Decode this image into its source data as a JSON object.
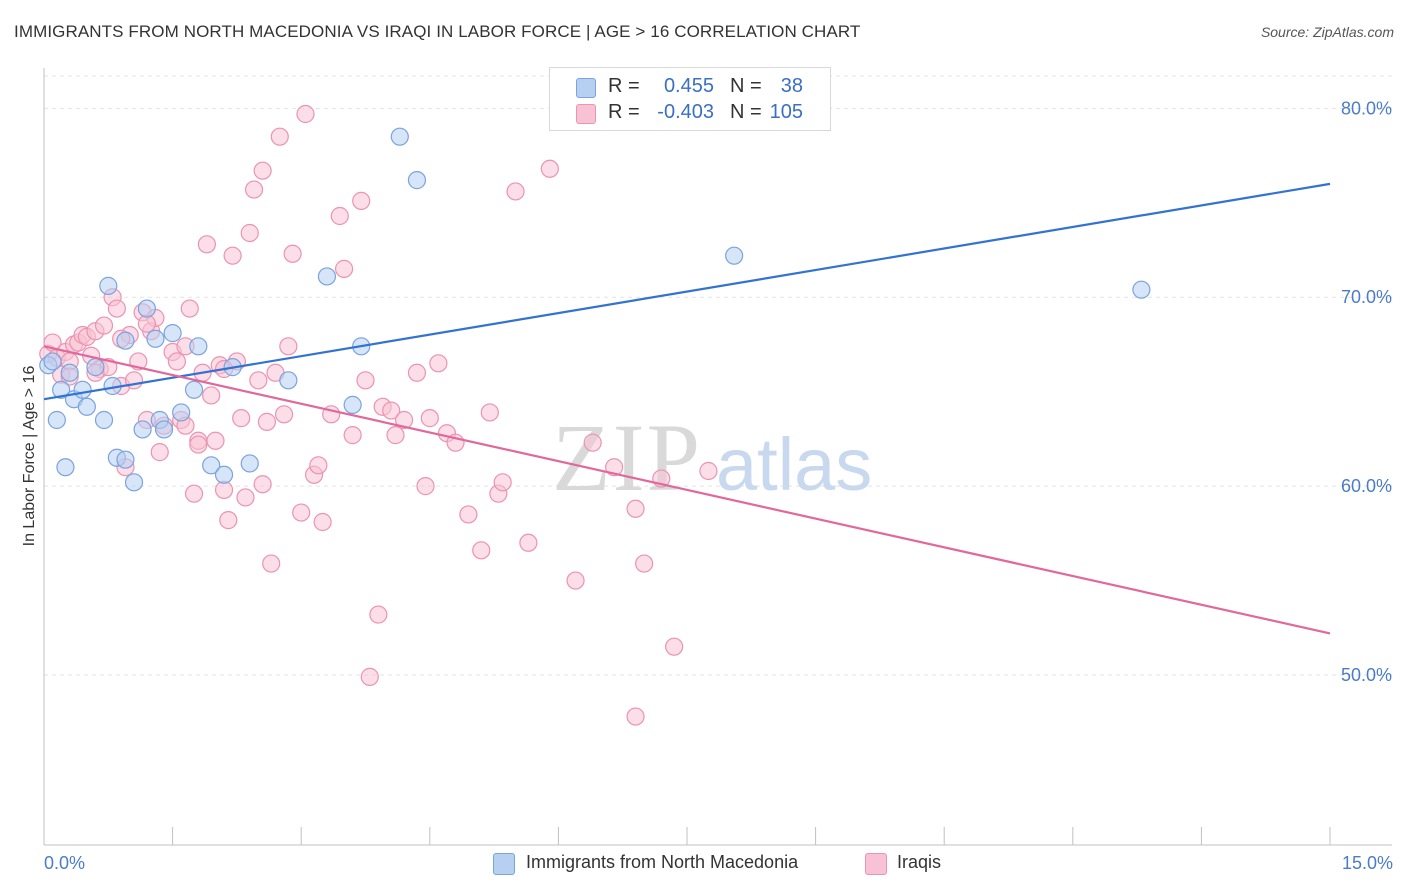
{
  "title": "IMMIGRANTS FROM NORTH MACEDONIA VS IRAQI IN LABOR FORCE | AGE > 16 CORRELATION CHART",
  "source": "Source: ZipAtlas.com",
  "watermark": {
    "zip": "ZIP",
    "atlas": "atlas"
  },
  "legend_top": {
    "r_label": "R =",
    "n_label": "N =",
    "rows": [
      {
        "r": "0.455",
        "n": "38"
      },
      {
        "r": "-0.403",
        "n": "105"
      }
    ]
  },
  "colors": {
    "blue_fill": "#b7d0f2",
    "blue_stroke": "#7ba3de",
    "blue_line": "#3272d2",
    "pink_fill": "#f7c3d4",
    "pink_stroke": "#ec93b1",
    "pink_line": "#e2689b",
    "grid": "#e3e3e3",
    "axis": "#c0c0c0",
    "tick_text": "#4a7cc9"
  },
  "chart_data": {
    "type": "scatter",
    "title": "IMMIGRANTS FROM NORTH MACEDONIA VS IRAQI IN LABOR FORCE | AGE > 16 CORRELATION CHART",
    "xlabel": "",
    "ylabel": "In Labor Force | Age > 16",
    "xlim": [
      0,
      15
    ],
    "ylim": [
      41,
      81.5
    ],
    "x_tick_labels": [
      "0.0%",
      "15.0%"
    ],
    "y_ticks": [
      50,
      60,
      70,
      80
    ],
    "y_tick_labels": [
      "50.0%",
      "60.0%",
      "70.0%",
      "80.0%"
    ],
    "grid": true,
    "series": [
      {
        "name": "Immigrants from North Macedonia",
        "color": "blue",
        "r": 0.455,
        "n": 38,
        "trend": {
          "x": [
            0,
            15
          ],
          "y": [
            64.6,
            76.0
          ]
        },
        "points": [
          [
            0.05,
            66.4
          ],
          [
            0.1,
            66.6
          ],
          [
            0.15,
            63.5
          ],
          [
            0.2,
            65.1
          ],
          [
            0.3,
            66.0
          ],
          [
            0.35,
            64.6
          ],
          [
            0.45,
            65.1
          ],
          [
            0.5,
            64.2
          ],
          [
            0.6,
            66.3
          ],
          [
            0.7,
            63.5
          ],
          [
            0.75,
            70.6
          ],
          [
            0.8,
            65.3
          ],
          [
            0.85,
            61.5
          ],
          [
            0.95,
            67.7
          ],
          [
            0.95,
            61.4
          ],
          [
            1.05,
            60.2
          ],
          [
            1.15,
            63.0
          ],
          [
            1.2,
            69.4
          ],
          [
            1.3,
            67.8
          ],
          [
            1.35,
            63.5
          ],
          [
            1.4,
            63.0
          ],
          [
            1.5,
            68.1
          ],
          [
            1.6,
            63.9
          ],
          [
            1.75,
            65.1
          ],
          [
            1.8,
            67.4
          ],
          [
            1.95,
            61.1
          ],
          [
            2.1,
            60.6
          ],
          [
            2.2,
            66.3
          ],
          [
            2.4,
            61.2
          ],
          [
            2.85,
            65.6
          ],
          [
            3.3,
            71.1
          ],
          [
            3.6,
            64.3
          ],
          [
            3.7,
            67.4
          ],
          [
            4.15,
            78.5
          ],
          [
            4.35,
            76.2
          ],
          [
            8.05,
            72.2
          ],
          [
            12.8,
            70.4
          ],
          [
            0.25,
            61.0
          ]
        ]
      },
      {
        "name": "Iraqis",
        "color": "pink",
        "r": -0.403,
        "n": 105,
        "trend": {
          "x": [
            0,
            15
          ],
          "y": [
            67.4,
            52.2
          ]
        },
        "points": [
          [
            0.05,
            67.0
          ],
          [
            0.1,
            67.6
          ],
          [
            0.15,
            66.8
          ],
          [
            0.2,
            65.9
          ],
          [
            0.25,
            67.1
          ],
          [
            0.3,
            66.6
          ],
          [
            0.35,
            67.5
          ],
          [
            0.4,
            67.6
          ],
          [
            0.45,
            68.0
          ],
          [
            0.5,
            67.9
          ],
          [
            0.55,
            66.9
          ],
          [
            0.6,
            68.2
          ],
          [
            0.65,
            66.2
          ],
          [
            0.7,
            68.5
          ],
          [
            0.75,
            66.3
          ],
          [
            0.8,
            70.0
          ],
          [
            0.85,
            69.4
          ],
          [
            0.9,
            65.3
          ],
          [
            0.95,
            61.0
          ],
          [
            1.0,
            68.0
          ],
          [
            1.05,
            65.6
          ],
          [
            1.1,
            66.6
          ],
          [
            1.15,
            69.2
          ],
          [
            1.2,
            63.5
          ],
          [
            1.25,
            68.2
          ],
          [
            1.3,
            68.9
          ],
          [
            1.35,
            61.8
          ],
          [
            1.4,
            63.2
          ],
          [
            1.5,
            67.1
          ],
          [
            1.55,
            66.6
          ],
          [
            1.6,
            63.5
          ],
          [
            1.65,
            63.2
          ],
          [
            1.7,
            69.4
          ],
          [
            1.75,
            59.6
          ],
          [
            1.8,
            62.4
          ],
          [
            1.85,
            66.0
          ],
          [
            1.9,
            72.8
          ],
          [
            1.95,
            64.8
          ],
          [
            2.0,
            62.4
          ],
          [
            2.05,
            66.4
          ],
          [
            2.1,
            59.8
          ],
          [
            2.15,
            58.2
          ],
          [
            2.2,
            72.2
          ],
          [
            2.25,
            66.6
          ],
          [
            2.3,
            63.6
          ],
          [
            2.35,
            59.4
          ],
          [
            2.4,
            73.4
          ],
          [
            2.45,
            75.7
          ],
          [
            2.5,
            65.6
          ],
          [
            2.55,
            76.7
          ],
          [
            2.6,
            63.4
          ],
          [
            2.65,
            55.9
          ],
          [
            2.7,
            66.0
          ],
          [
            2.75,
            78.5
          ],
          [
            2.8,
            63.8
          ],
          [
            2.85,
            67.4
          ],
          [
            2.9,
            72.3
          ],
          [
            3.0,
            58.6
          ],
          [
            3.05,
            79.7
          ],
          [
            3.15,
            60.6
          ],
          [
            3.25,
            58.1
          ],
          [
            3.35,
            63.8
          ],
          [
            3.45,
            74.3
          ],
          [
            3.5,
            71.5
          ],
          [
            3.6,
            62.7
          ],
          [
            3.7,
            75.1
          ],
          [
            3.75,
            65.6
          ],
          [
            3.8,
            49.9
          ],
          [
            3.9,
            53.2
          ],
          [
            3.95,
            64.2
          ],
          [
            4.05,
            64.0
          ],
          [
            4.2,
            63.5
          ],
          [
            4.35,
            66.0
          ],
          [
            4.5,
            63.6
          ],
          [
            4.6,
            66.5
          ],
          [
            4.7,
            62.8
          ],
          [
            4.8,
            62.3
          ],
          [
            4.95,
            58.5
          ],
          [
            5.1,
            56.6
          ],
          [
            5.2,
            63.9
          ],
          [
            5.3,
            59.6
          ],
          [
            5.5,
            75.6
          ],
          [
            5.65,
            57.0
          ],
          [
            5.9,
            76.8
          ],
          [
            6.2,
            55.0
          ],
          [
            6.4,
            62.3
          ],
          [
            6.65,
            61.0
          ],
          [
            6.9,
            47.8
          ],
          [
            7.0,
            55.9
          ],
          [
            7.2,
            60.4
          ],
          [
            7.35,
            51.5
          ],
          [
            7.75,
            60.8
          ],
          [
            1.8,
            62.2
          ],
          [
            0.9,
            67.8
          ],
          [
            1.2,
            68.6
          ],
          [
            0.6,
            66.0
          ],
          [
            0.3,
            65.8
          ],
          [
            2.1,
            66.2
          ],
          [
            1.65,
            67.4
          ],
          [
            2.55,
            60.1
          ],
          [
            3.2,
            61.1
          ],
          [
            4.1,
            62.7
          ],
          [
            4.45,
            60.0
          ],
          [
            5.35,
            60.2
          ],
          [
            6.9,
            58.8
          ]
        ]
      }
    ]
  },
  "legend_bottom": [
    {
      "label": "Immigrants from North Macedonia"
    },
    {
      "label": "Iraqis"
    }
  ]
}
